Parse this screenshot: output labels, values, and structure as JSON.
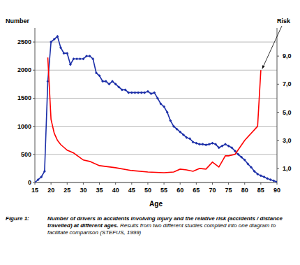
{
  "chart_data": {
    "type": "line",
    "y_label": "Number",
    "y2_label": "Risk",
    "x_label": "Age",
    "caption": {
      "label": "Figure 1:",
      "title": "Number of drivers in accidents involving injury and the relative risk (accidents / distance travelled) at different ages.",
      "text": "Results from two different studies compiled into one diagram to facilitate comparison (STEFUS, 1999)"
    },
    "xlim": [
      15,
      90
    ],
    "xticks": [
      15,
      20,
      25,
      30,
      35,
      40,
      45,
      50,
      55,
      60,
      65,
      70,
      75,
      80,
      85,
      90
    ],
    "ylim": [
      0,
      2750
    ],
    "yticks": [
      0,
      500,
      1000,
      1500,
      2000,
      2500
    ],
    "y2lim": [
      0,
      11
    ],
    "y2ticks": [
      {
        "value": 1,
        "label": "1,0"
      },
      {
        "value": 3,
        "label": "3,0"
      },
      {
        "value": 5,
        "label": "5,0"
      },
      {
        "value": 7,
        "label": "7,0"
      },
      {
        "value": 9,
        "label": "9,0"
      }
    ],
    "grid": true,
    "series": [
      {
        "color": "#1c2fa8",
        "marker": "diamond",
        "line_style": "solid",
        "x": [
          15,
          16,
          17,
          18,
          19,
          20,
          21,
          22,
          23,
          24,
          25,
          26,
          27,
          28,
          29,
          30,
          31,
          32,
          33,
          34,
          35,
          36,
          37,
          38,
          39,
          40,
          41,
          42,
          43,
          44,
          45,
          46,
          47,
          48,
          49,
          50,
          51,
          52,
          53,
          54,
          55,
          56,
          57,
          58,
          59,
          60,
          61,
          62,
          63,
          64,
          65,
          66,
          67,
          68,
          69,
          70,
          71,
          72,
          73,
          74,
          75,
          76,
          77,
          78,
          79,
          80,
          81,
          82,
          83,
          84,
          85,
          86,
          87,
          88,
          89,
          90
        ],
        "values": [
          0,
          50,
          100,
          200,
          1800,
          2500,
          2550,
          2600,
          2400,
          2300,
          2300,
          2100,
          2200,
          2200,
          2200,
          2200,
          2250,
          2250,
          2200,
          1950,
          1900,
          1800,
          1800,
          1750,
          1800,
          1750,
          1700,
          1650,
          1650,
          1600,
          1600,
          1600,
          1600,
          1600,
          1600,
          1620,
          1580,
          1600,
          1500,
          1400,
          1350,
          1250,
          1100,
          1000,
          950,
          900,
          850,
          800,
          780,
          720,
          700,
          680,
          680,
          670,
          680,
          700,
          680,
          620,
          650,
          680,
          650,
          620,
          560,
          500,
          450,
          400,
          330,
          270,
          200,
          150,
          120,
          100,
          70,
          50,
          30,
          10
        ]
      },
      {
        "color": "#ff0000",
        "marker": "none",
        "line_style": "solid",
        "axis": "y2",
        "x": [
          19,
          20,
          21,
          22,
          23,
          24,
          25,
          27,
          30,
          32,
          35,
          40,
          45,
          50,
          55,
          58,
          60,
          62,
          64,
          66,
          68,
          70,
          72,
          74,
          75,
          77,
          80,
          84,
          85
        ],
        "values": [
          8.9,
          4.5,
          3.5,
          3.0,
          2.7,
          2.5,
          2.3,
          2.1,
          1.6,
          1.5,
          1.2,
          1.05,
          0.85,
          0.75,
          0.7,
          0.75,
          0.95,
          0.9,
          0.8,
          1.0,
          0.95,
          1.45,
          1.1,
          1.9,
          1.9,
          2.0,
          3.0,
          4.0,
          8.0
        ]
      }
    ]
  }
}
